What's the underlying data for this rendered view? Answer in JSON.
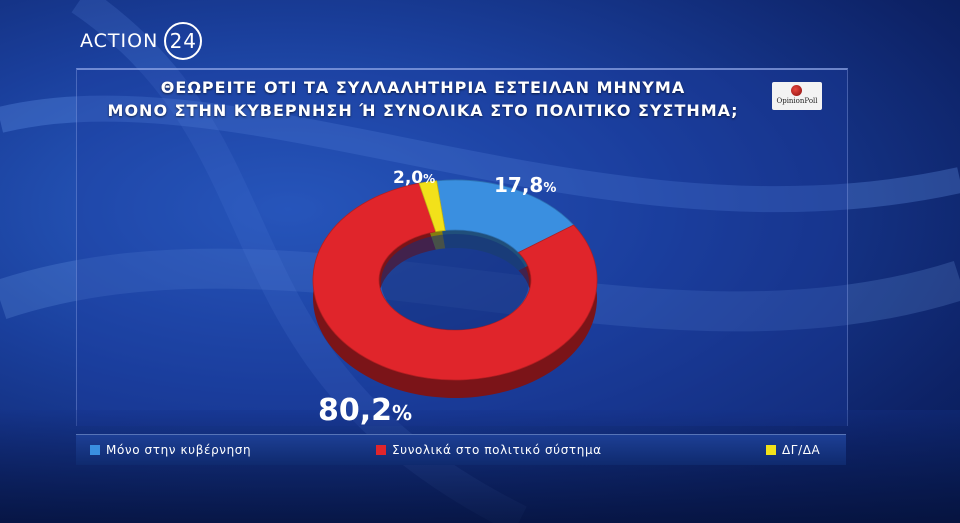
{
  "brand": {
    "text": "ACTION",
    "num": "24"
  },
  "logo": {
    "text": "OpinionPoll"
  },
  "chart_data": {
    "type": "pie",
    "donut": true,
    "title_lines": [
      "ΘΕΩΡΕΙΤΕ ΟΤΙ ΤΑ ΣΥΛΛΑΛΗΤΗΡΙΑ ΕΣΤΕΙΛΑΝ ΜΗΝΥΜΑ",
      "ΜΟΝΟ ΣΤΗΝ ΚΥΒΕΡΝΗΣΗ Ή ΣΥΝΟΛΙΚΑ ΣΤΟ ΠΟΛΙΤΙΚΟ ΣΥΣΤΗΜΑ;"
    ],
    "legend_placement": "bottom",
    "slices": [
      {
        "label": "Μόνο στην κυβέρνηση",
        "value": 17.8,
        "value_text": "17,8",
        "color": "#3a8fe0"
      },
      {
        "label": "Συνολικά στο πολιτικό σύστημα",
        "value": 80.2,
        "value_text": "80,2",
        "color": "#e0252b"
      },
      {
        "label": "ΔΓ/ΔΑ",
        "value": 2.0,
        "value_text": "2,0",
        "color": "#f2e11a"
      }
    ],
    "unit": "%"
  }
}
